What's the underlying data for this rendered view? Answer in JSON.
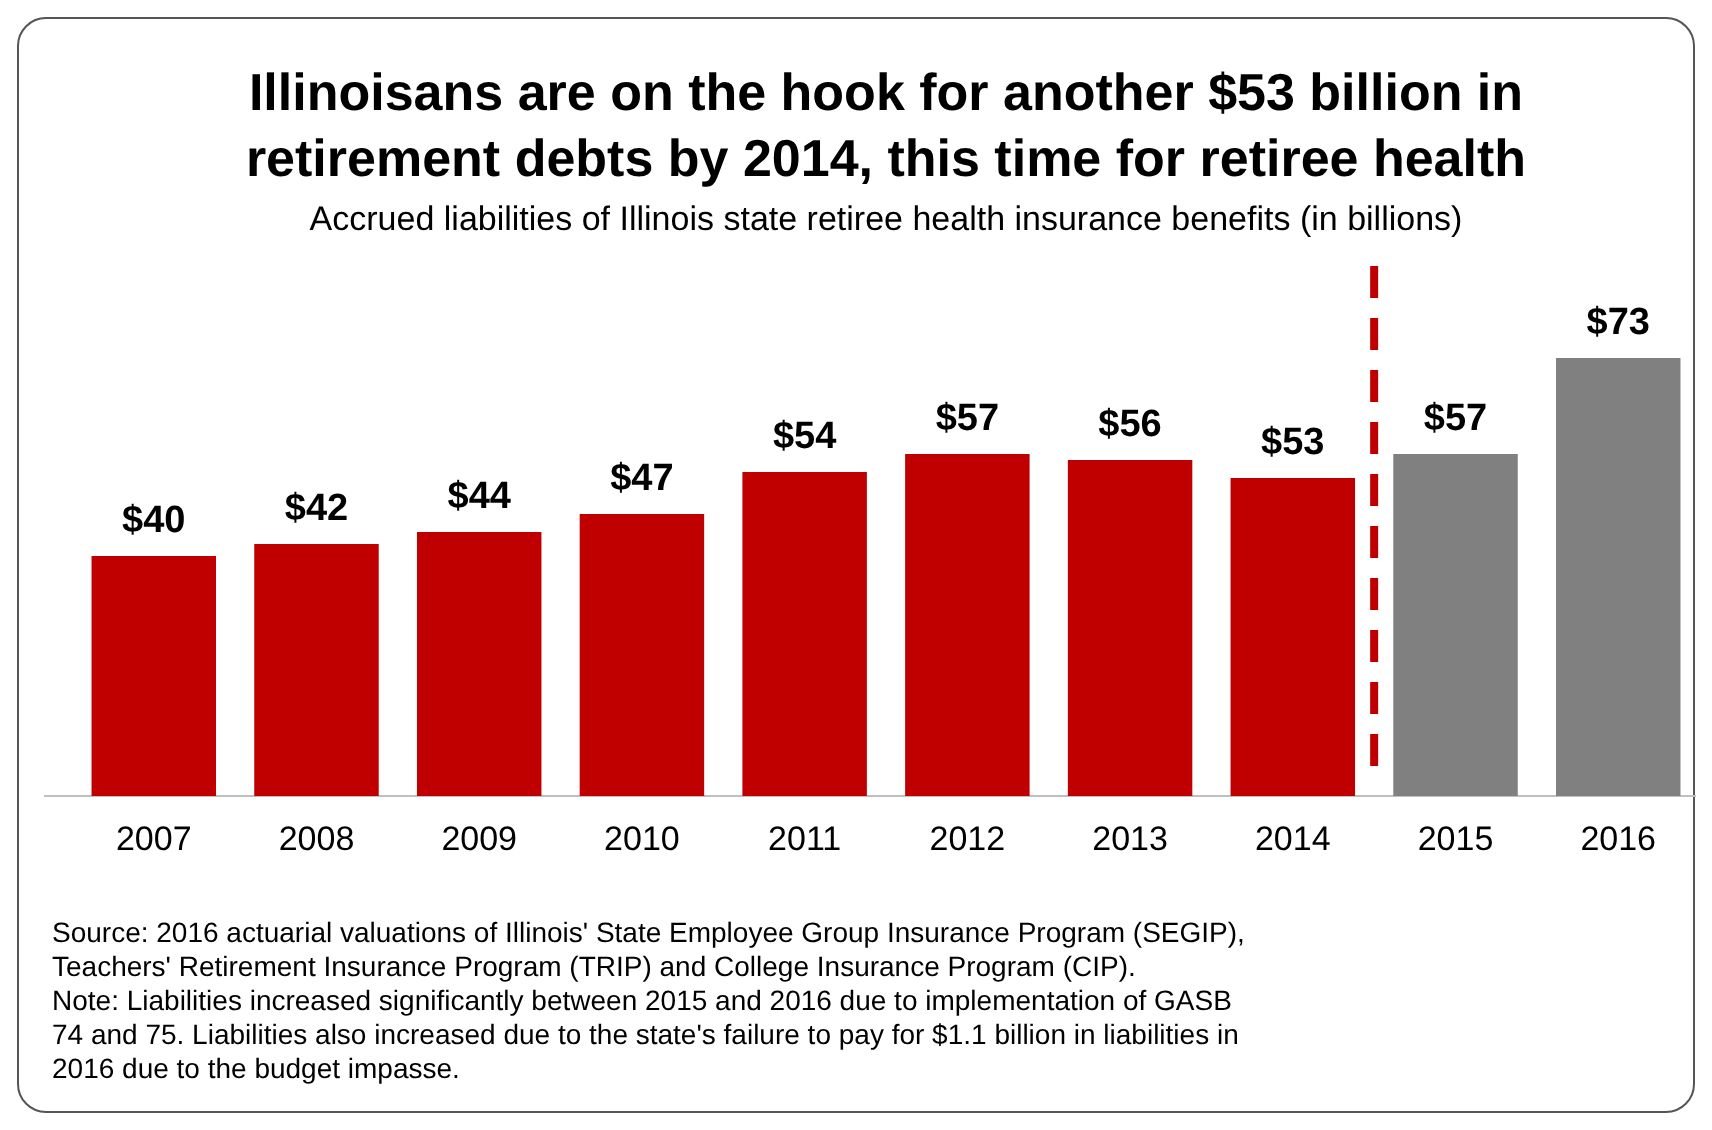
{
  "chart_data": {
    "type": "bar",
    "title": "Illinoisans are on the hook for another $53 billion in retirement debts by 2014, this time for retiree health",
    "subtitle": "Accrued liabilities of Illinois state retiree health insurance benefits (in billions)",
    "categories": [
      "2007",
      "2008",
      "2009",
      "2010",
      "2011",
      "2012",
      "2013",
      "2014",
      "2015",
      "2016"
    ],
    "values": [
      40,
      42,
      44,
      47,
      54,
      57,
      56,
      53,
      57,
      73
    ],
    "colors": [
      "#c00000",
      "#c00000",
      "#c00000",
      "#c00000",
      "#c00000",
      "#c00000",
      "#c00000",
      "#c00000",
      "#808080",
      "#808080"
    ],
    "value_labels": [
      "$40",
      "$42",
      "$44",
      "$47",
      "$54",
      "$57",
      "$56",
      "$53",
      "$57",
      "$73"
    ],
    "annotations": [
      "Source: 2016 actuarial valuations of Illinois' State Employee Group Insurance Program (SEGIP), Teachers' Retirement Insurance Program (TRIP) and College Insurance Program (CIP).",
      "Note: Liabilities increased significantly between 2015 and 2016 due to implementation of GASB 74 and 75. Liabilities also increased due to the state's failure to pay for $1.1 billion in liabilities in 2016 due to the budget impasse."
    ]
  }
}
